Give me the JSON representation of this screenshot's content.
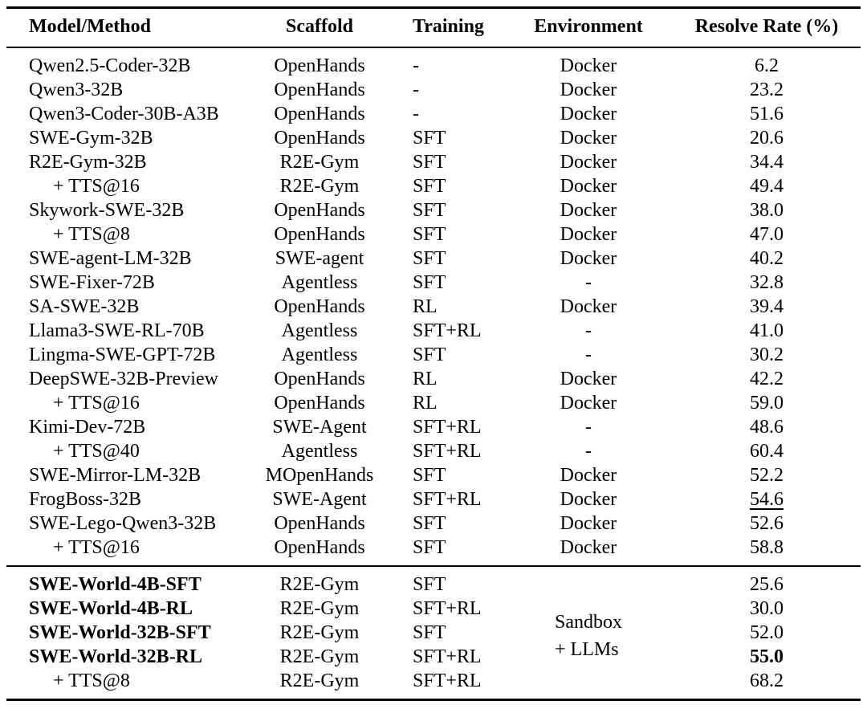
{
  "colors": {
    "text": "#000000",
    "background": "#ffffff",
    "rule": "#000000"
  },
  "table": {
    "columns": [
      "Model/Method",
      "Scaffold",
      "Training",
      "Environment",
      "Resolve Rate (%)"
    ],
    "sections": [
      {
        "name": "baseline-models",
        "rows": [
          {
            "model": "Qwen2.5-Coder-32B",
            "scaffold": "OpenHands",
            "training": "-",
            "environment": "Docker",
            "rate": "6.2",
            "indent": false,
            "bold_model": false,
            "rate_bold": false,
            "rate_underline": false
          },
          {
            "model": "Qwen3-32B",
            "scaffold": "OpenHands",
            "training": "-",
            "environment": "Docker",
            "rate": "23.2",
            "indent": false,
            "bold_model": false,
            "rate_bold": false,
            "rate_underline": false
          },
          {
            "model": "Qwen3-Coder-30B-A3B",
            "scaffold": "OpenHands",
            "training": "-",
            "environment": "Docker",
            "rate": "51.6",
            "indent": false,
            "bold_model": false,
            "rate_bold": false,
            "rate_underline": false
          },
          {
            "model": "SWE-Gym-32B",
            "scaffold": "OpenHands",
            "training": "SFT",
            "environment": "Docker",
            "rate": "20.6",
            "indent": false,
            "bold_model": false,
            "rate_bold": false,
            "rate_underline": false
          },
          {
            "model": "R2E-Gym-32B",
            "scaffold": "R2E-Gym",
            "training": "SFT",
            "environment": "Docker",
            "rate": "34.4",
            "indent": false,
            "bold_model": false,
            "rate_bold": false,
            "rate_underline": false
          },
          {
            "model": "+ TTS@16",
            "scaffold": "R2E-Gym",
            "training": "SFT",
            "environment": "Docker",
            "rate": "49.4",
            "indent": true,
            "bold_model": false,
            "rate_bold": false,
            "rate_underline": false
          },
          {
            "model": "Skywork-SWE-32B",
            "scaffold": "OpenHands",
            "training": "SFT",
            "environment": "Docker",
            "rate": "38.0",
            "indent": false,
            "bold_model": false,
            "rate_bold": false,
            "rate_underline": false
          },
          {
            "model": "+ TTS@8",
            "scaffold": "OpenHands",
            "training": "SFT",
            "environment": "Docker",
            "rate": "47.0",
            "indent": true,
            "bold_model": false,
            "rate_bold": false,
            "rate_underline": false
          },
          {
            "model": "SWE-agent-LM-32B",
            "scaffold": "SWE-agent",
            "training": "SFT",
            "environment": "Docker",
            "rate": "40.2",
            "indent": false,
            "bold_model": false,
            "rate_bold": false,
            "rate_underline": false
          },
          {
            "model": "SWE-Fixer-72B",
            "scaffold": "Agentless",
            "training": "SFT",
            "environment": "-",
            "rate": "32.8",
            "indent": false,
            "bold_model": false,
            "rate_bold": false,
            "rate_underline": false
          },
          {
            "model": "SA-SWE-32B",
            "scaffold": "OpenHands",
            "training": "RL",
            "environment": "Docker",
            "rate": "39.4",
            "indent": false,
            "bold_model": false,
            "rate_bold": false,
            "rate_underline": false
          },
          {
            "model": "Llama3-SWE-RL-70B",
            "scaffold": "Agentless",
            "training": "SFT+RL",
            "environment": "-",
            "rate": "41.0",
            "indent": false,
            "bold_model": false,
            "rate_bold": false,
            "rate_underline": false
          },
          {
            "model": "Lingma-SWE-GPT-72B",
            "scaffold": "Agentless",
            "training": "SFT",
            "environment": "-",
            "rate": "30.2",
            "indent": false,
            "bold_model": false,
            "rate_bold": false,
            "rate_underline": false
          },
          {
            "model": "DeepSWE-32B-Preview",
            "scaffold": "OpenHands",
            "training": "RL",
            "environment": "Docker",
            "rate": "42.2",
            "indent": false,
            "bold_model": false,
            "rate_bold": false,
            "rate_underline": false
          },
          {
            "model": "+ TTS@16",
            "scaffold": "OpenHands",
            "training": "RL",
            "environment": "Docker",
            "rate": "59.0",
            "indent": true,
            "bold_model": false,
            "rate_bold": false,
            "rate_underline": false
          },
          {
            "model": "Kimi-Dev-72B",
            "scaffold": "SWE-Agent",
            "training": "SFT+RL",
            "environment": "-",
            "rate": "48.6",
            "indent": false,
            "bold_model": false,
            "rate_bold": false,
            "rate_underline": false
          },
          {
            "model": "+ TTS@40",
            "scaffold": "Agentless",
            "training": "SFT+RL",
            "environment": "-",
            "rate": "60.4",
            "indent": true,
            "bold_model": false,
            "rate_bold": false,
            "rate_underline": false
          },
          {
            "model": "SWE-Mirror-LM-32B",
            "scaffold": "MOpenHands",
            "training": "SFT",
            "environment": "Docker",
            "rate": "52.2",
            "indent": false,
            "bold_model": false,
            "rate_bold": false,
            "rate_underline": false
          },
          {
            "model": "FrogBoss-32B",
            "scaffold": "SWE-Agent",
            "training": "SFT+RL",
            "environment": "Docker",
            "rate": "54.6",
            "indent": false,
            "bold_model": false,
            "rate_bold": false,
            "rate_underline": true
          },
          {
            "model": "SWE-Lego-Qwen3-32B",
            "scaffold": "OpenHands",
            "training": "SFT",
            "environment": "Docker",
            "rate": "52.6",
            "indent": false,
            "bold_model": false,
            "rate_bold": false,
            "rate_underline": false
          },
          {
            "model": "+ TTS@16",
            "scaffold": "OpenHands",
            "training": "SFT",
            "environment": "Docker",
            "rate": "58.8",
            "indent": true,
            "bold_model": false,
            "rate_bold": false,
            "rate_underline": false
          }
        ]
      },
      {
        "name": "swe-world-models",
        "environment_merged": {
          "line1": "Sandbox",
          "line2": "+ LLMs"
        },
        "rows": [
          {
            "model": "SWE-World-4B-SFT",
            "scaffold": "R2E-Gym",
            "training": "SFT",
            "rate": "25.6",
            "indent": false,
            "bold_model": true,
            "rate_bold": false,
            "rate_underline": false
          },
          {
            "model": "SWE-World-4B-RL",
            "scaffold": "R2E-Gym",
            "training": "SFT+RL",
            "rate": "30.0",
            "indent": false,
            "bold_model": true,
            "rate_bold": false,
            "rate_underline": false
          },
          {
            "model": "SWE-World-32B-SFT",
            "scaffold": "R2E-Gym",
            "training": "SFT",
            "rate": "52.0",
            "indent": false,
            "bold_model": true,
            "rate_bold": false,
            "rate_underline": false
          },
          {
            "model": "SWE-World-32B-RL",
            "scaffold": "R2E-Gym",
            "training": "SFT+RL",
            "rate": "55.0",
            "indent": false,
            "bold_model": true,
            "rate_bold": true,
            "rate_underline": false
          },
          {
            "model": "+ TTS@8",
            "scaffold": "R2E-Gym",
            "training": "SFT+RL",
            "rate": "68.2",
            "indent": true,
            "bold_model": false,
            "rate_bold": false,
            "rate_underline": false
          }
        ]
      }
    ]
  }
}
